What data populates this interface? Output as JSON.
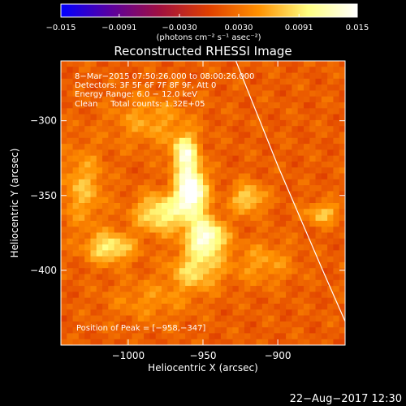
{
  "chart_data": {
    "type": "heatmap",
    "title": "Reconstructed RHESSI Image",
    "xlabel": "Heliocentric X (arcsec)",
    "ylabel": "Heliocentric Y (arcsec)",
    "xlim": [
      -1045,
      -855
    ],
    "ylim": [
      -450,
      -260
    ],
    "xticks": [
      -1000,
      -950,
      -900
    ],
    "xtick_labels": [
      "−1000",
      "−950",
      "−900"
    ],
    "yticks": [
      -300,
      -350,
      -400
    ],
    "ytick_labels": [
      "−300",
      "−350",
      "−400"
    ],
    "colorbar": {
      "min": -0.015,
      "max": 0.015,
      "ticks": [
        -0.015,
        -0.0091,
        -0.003,
        0.003,
        0.0091,
        0.015
      ],
      "tick_labels": [
        "−0.015",
        "−0.0091",
        "−0.0030",
        "0.0030",
        "0.0091",
        "0.015"
      ],
      "unit_label": "(photons cm⁻² s⁻¹ asec⁻²)",
      "colors": [
        "#0000ff",
        "#5a00a0",
        "#a01040",
        "#e04000",
        "#ff9000",
        "#ffff80",
        "#ffffff"
      ]
    },
    "annotations": {
      "line1": "8−Mar−2015 07:50:26.000 to 08:00:26.000",
      "line2": "Detectors: 3F 5F 6F 7F 8F 9F, Att 0",
      "line3": "Energy Range: 6.0 − 12.0 keV",
      "line4": "Clean     Total counts: 1.32E+05",
      "peak": "Position of Peak = [−958,−347]"
    },
    "peak": {
      "x": -958,
      "y": -347
    },
    "sources": [
      {
        "x": -958,
        "y": -347,
        "sx": 7,
        "sy": 11,
        "amp": 0.0155
      },
      {
        "x": -962,
        "y": -322,
        "sx": 6,
        "sy": 9,
        "amp": 0.0105
      },
      {
        "x": -948,
        "y": -378,
        "sx": 9,
        "sy": 9,
        "amp": 0.0125
      },
      {
        "x": -978,
        "y": -362,
        "sx": 12,
        "sy": 9,
        "amp": 0.0088
      },
      {
        "x": -1012,
        "y": -385,
        "sx": 11,
        "sy": 7,
        "amp": 0.0083
      },
      {
        "x": -920,
        "y": -352,
        "sx": 8,
        "sy": 7,
        "amp": 0.0068
      },
      {
        "x": -870,
        "y": -362,
        "sx": 8,
        "sy": 5,
        "amp": 0.006
      },
      {
        "x": -955,
        "y": -400,
        "sx": 12,
        "sy": 9,
        "amp": 0.0068
      },
      {
        "x": -1030,
        "y": -345,
        "sx": 10,
        "sy": 18,
        "amp": 0.005
      },
      {
        "x": -985,
        "y": -300,
        "sx": 18,
        "sy": 12,
        "amp": 0.004
      },
      {
        "x": -910,
        "y": -395,
        "sx": 14,
        "sy": 10,
        "amp": 0.0038
      },
      {
        "x": -985,
        "y": -420,
        "sx": 20,
        "sy": 10,
        "amp": 0.003
      }
    ],
    "limb_points": [
      [
        -928,
        -260
      ],
      [
        -900,
        -330
      ],
      [
        -870,
        -400
      ],
      [
        -848,
        -450
      ]
    ],
    "grid": false
  },
  "footer": {
    "timestamp": "22−Aug−2017 12:30"
  }
}
